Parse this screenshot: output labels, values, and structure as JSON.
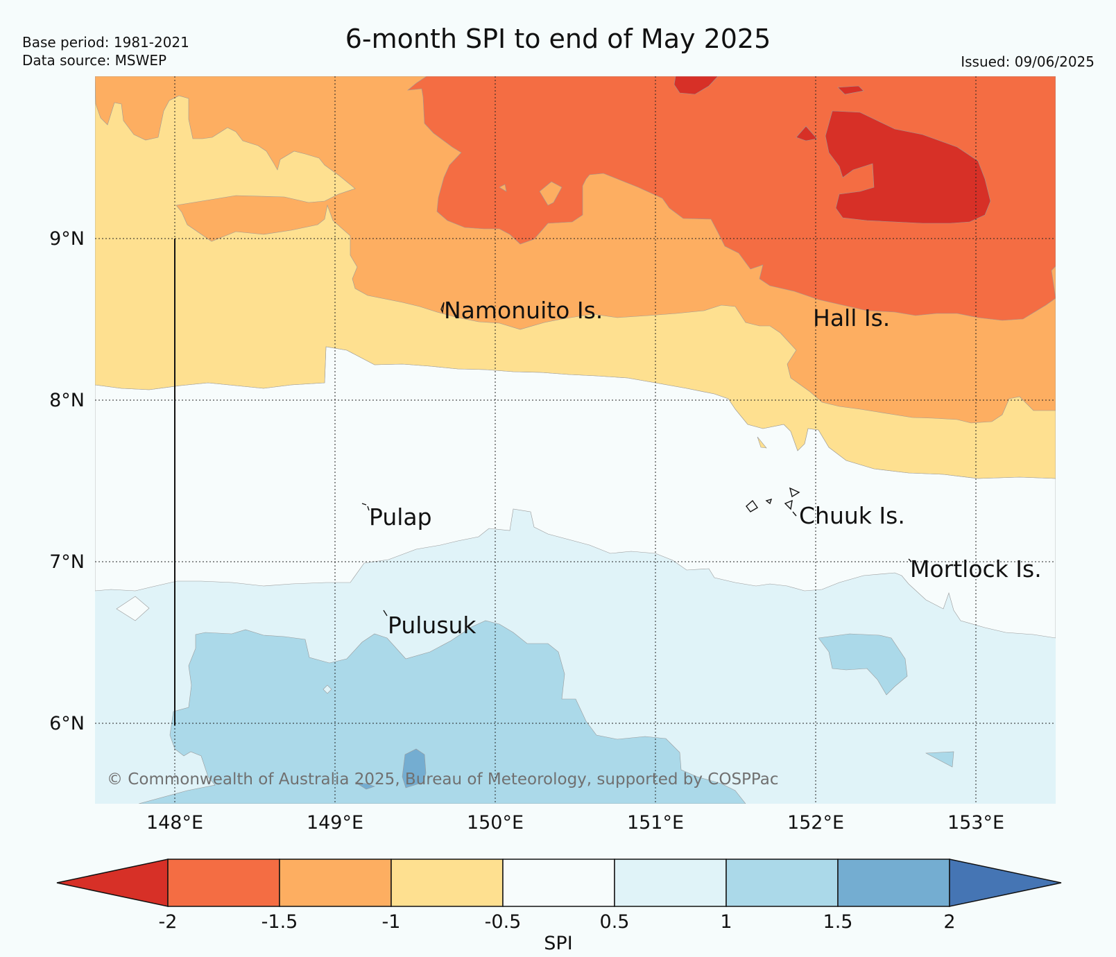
{
  "header": {
    "title": "6-month SPI to end of May 2025",
    "base_period": "Base period: 1981-2021",
    "data_source": "Data source: MSWEP",
    "issued": "Issued: 09/06/2025"
  },
  "map": {
    "lon_range": [
      147.5,
      153.5
    ],
    "lat_range": [
      5.5,
      10.0
    ],
    "lon_ticks": [
      "148°E",
      "149°E",
      "150°E",
      "151°E",
      "152°E",
      "153°E"
    ],
    "lat_ticks": [
      "9°N",
      "8°N",
      "7°N",
      "6°N"
    ],
    "islands": [
      "Namonuito Is.",
      "Hall Is.",
      "Pulap",
      "Chuuk Is.",
      "Mortlock Is.",
      "Pulusuk"
    ],
    "copyright": "© Commonwealth of Australia 2025, Bureau of Meteorology, supported by COSPPac",
    "colors": {
      "spi_lt_m2": "#d73027",
      "spi_m2_m15": "#f46d43",
      "spi_m15_m1": "#fdae61",
      "spi_m1_m05": "#fee090",
      "spi_m05_05": "#f7fcfc",
      "spi_05_1": "#e0f3f8",
      "spi_1_15": "#abd9e9",
      "spi_15_2": "#74add1",
      "spi_gt_2": "#4575b4"
    }
  },
  "colorbar": {
    "label": "SPI",
    "ticks": [
      "-2",
      "-1.5",
      "-1",
      "-0.5",
      "0.5",
      "1",
      "1.5",
      "2"
    ],
    "colors": [
      "#d73027",
      "#f46d43",
      "#fdae61",
      "#fee090",
      "#f7fcfc",
      "#e0f3f8",
      "#abd9e9",
      "#74add1",
      "#4575b4"
    ]
  }
}
